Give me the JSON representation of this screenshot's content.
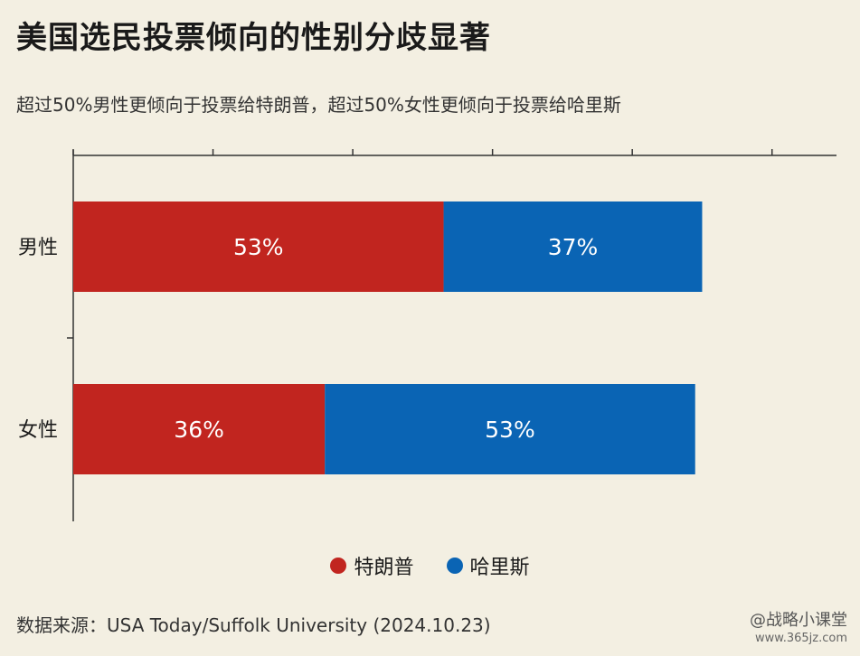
{
  "title": "美国选民投票倾向的性别分歧显著",
  "subtitle": "超过50%男性更倾向于投票给特朗普，超过50%女性更倾向于投票给哈里斯",
  "source": "数据来源：USA Today/Suffolk University (2024.10.23)",
  "watermark": {
    "label": "@战略小课堂",
    "site": "www.365jz.com"
  },
  "chart_data": {
    "type": "bar",
    "orientation": "horizontal",
    "stacked": true,
    "categories": [
      "男性",
      "女性"
    ],
    "series": [
      {
        "name": "特朗普",
        "values": [
          53,
          36
        ],
        "labels": [
          "53%",
          "36%"
        ],
        "color": "#c1251f"
      },
      {
        "name": "哈里斯",
        "values": [
          37,
          53
        ],
        "labels": [
          "37%",
          "53%"
        ],
        "color": "#0a64b4"
      }
    ],
    "xlim": [
      0,
      110
    ],
    "x_tick_step": 20,
    "grid": false,
    "legend_position": "bottom-center"
  },
  "colors": {
    "background": "#f3efe2",
    "axis": "#333333",
    "label_text": "#ffffff"
  }
}
